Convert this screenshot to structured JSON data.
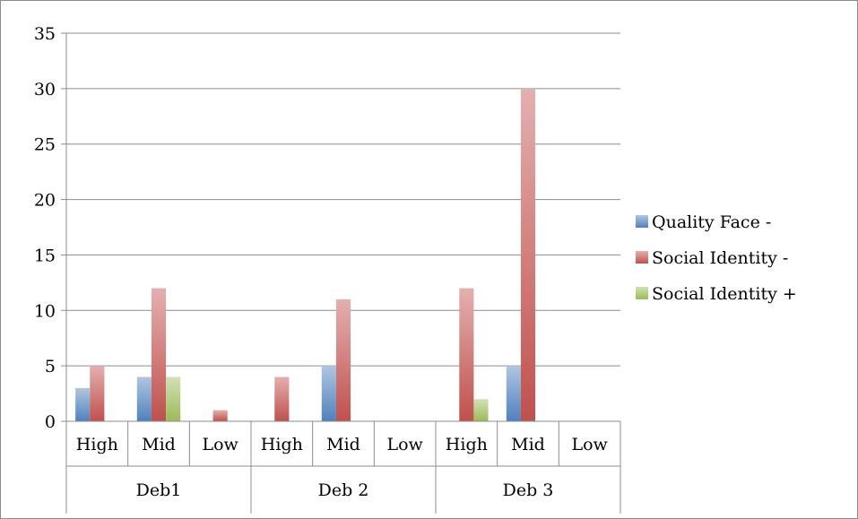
{
  "chart_data": {
    "type": "bar",
    "groups": [
      {
        "label": "Deb1",
        "categories": [
          "High",
          "Mid",
          "Low"
        ]
      },
      {
        "label": "Deb 2",
        "categories": [
          "High",
          "Mid",
          "Low"
        ]
      },
      {
        "label": "Deb 3",
        "categories": [
          "High",
          "Mid",
          "Low"
        ]
      }
    ],
    "series": [
      {
        "name": "Quality Face -",
        "color": "#4f81bd",
        "values": [
          3,
          4,
          0,
          0,
          5,
          0,
          0,
          5,
          0
        ]
      },
      {
        "name": "Social Identity -",
        "color": "#c0504d",
        "values": [
          5,
          12,
          1,
          4,
          11,
          0,
          12,
          30,
          0
        ]
      },
      {
        "name": "Social Identity +",
        "color": "#9bbb59",
        "values": [
          0,
          4,
          0,
          0,
          0,
          0,
          2,
          0,
          0
        ]
      }
    ],
    "ylim": [
      0,
      35
    ],
    "yticks": [
      0,
      5,
      10,
      15,
      20,
      25,
      30,
      35
    ],
    "grid": true,
    "legend_position": "right"
  }
}
